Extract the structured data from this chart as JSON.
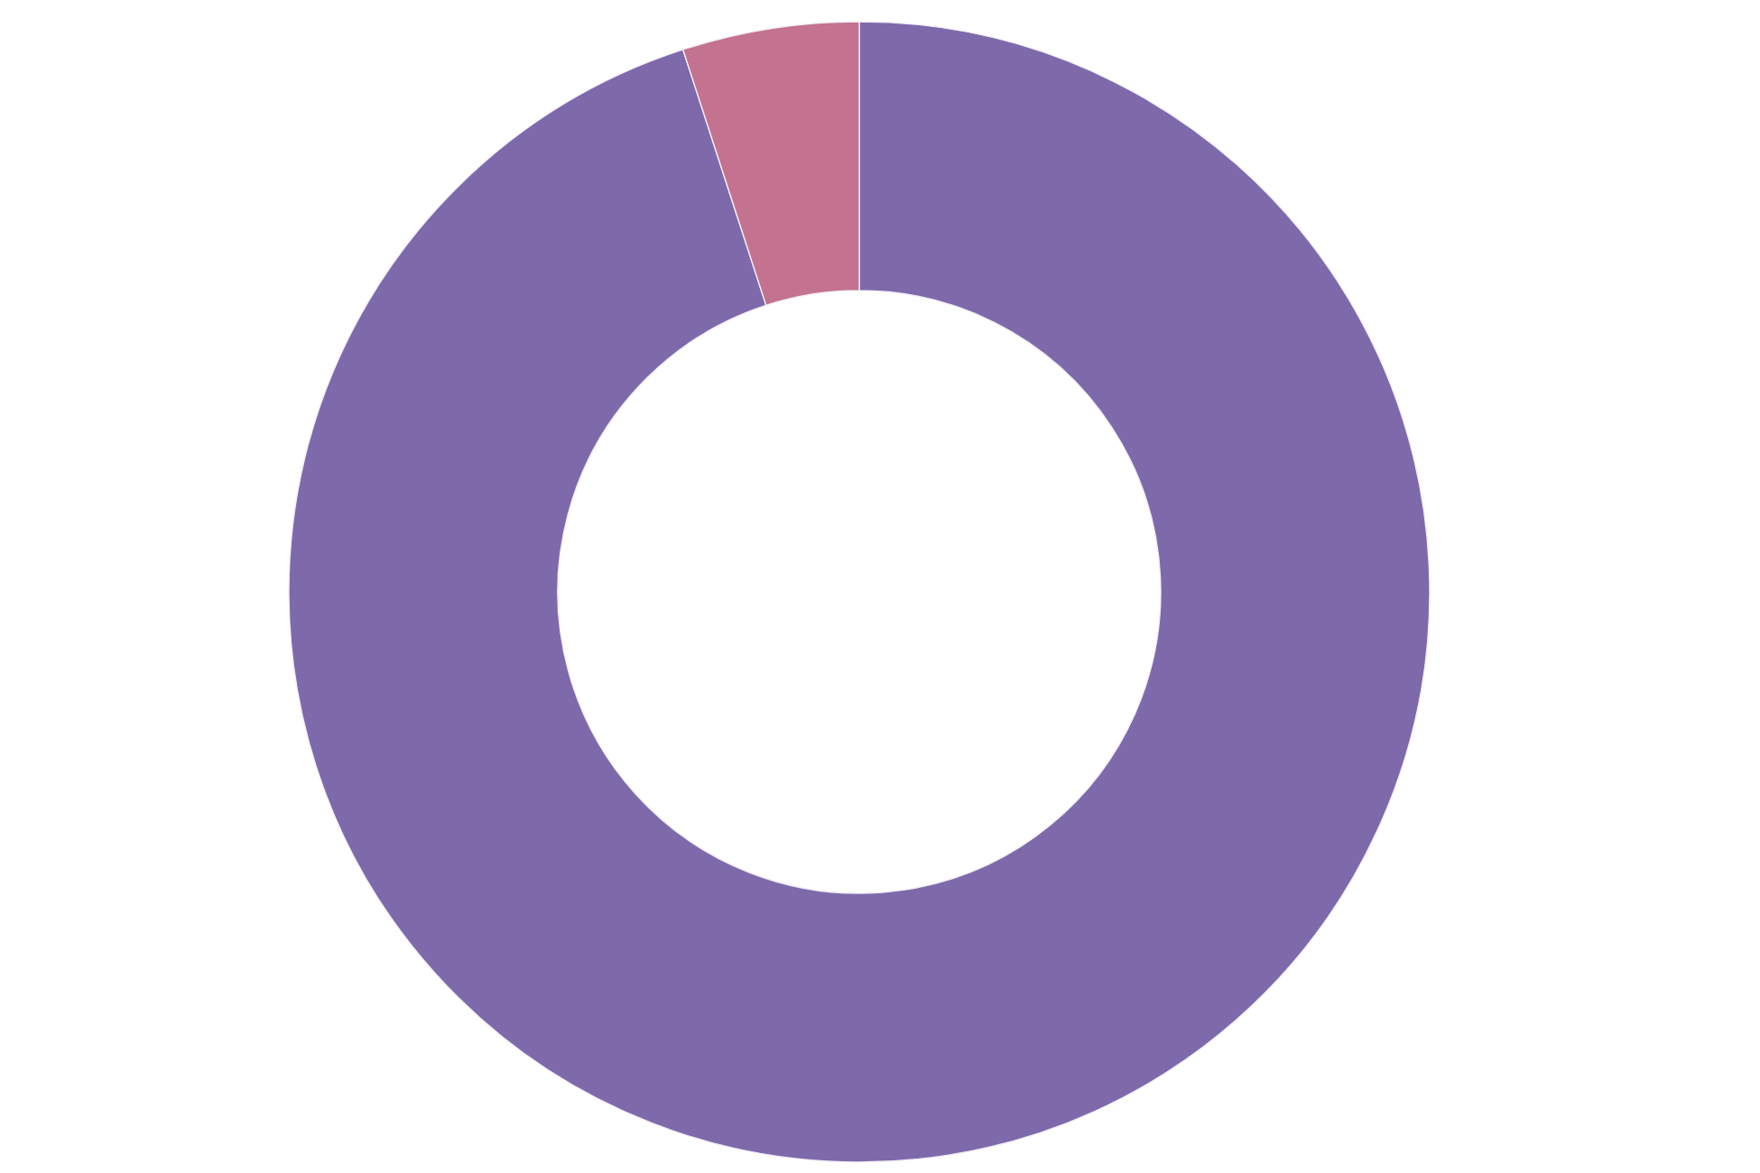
{
  "chart_data": {
    "type": "donut",
    "categories": [
      null,
      null
    ],
    "values": [
      95,
      5
    ],
    "colors": [
      "#7e69ab",
      "#c37290"
    ]
  }
}
